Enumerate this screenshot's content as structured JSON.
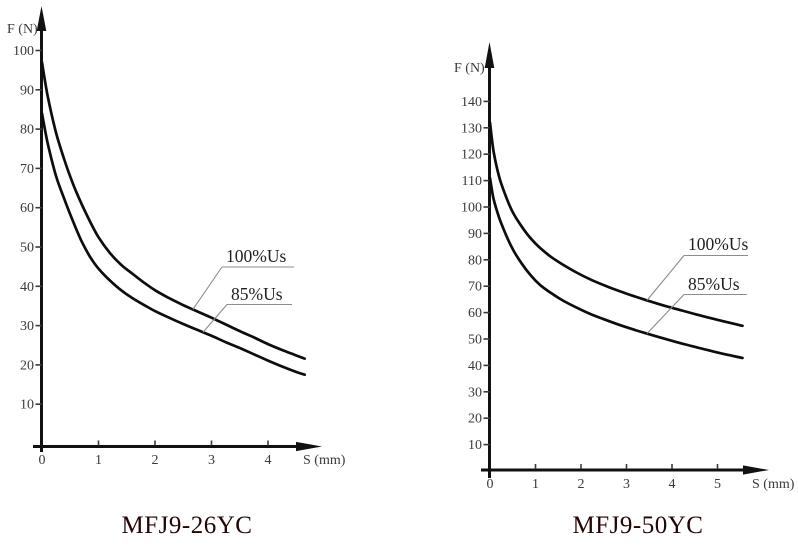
{
  "figure": {
    "background": "#ffffff"
  },
  "colors": {
    "curve": "#0d0d0d",
    "axis": "#111111",
    "tick_label": "#3a3a3a",
    "axis_title": "#3a3a3a",
    "annotation_text": "#1f1f1f",
    "leader_line": "#8c8c8c",
    "caption": "#220606"
  },
  "chart_data": [
    {
      "type": "line",
      "title": "MFJ9-26YC",
      "xlabel": "S (mm)",
      "ylabel": "F (N)",
      "x_ticks": [
        0,
        1,
        2,
        3,
        4
      ],
      "y_ticks": [
        10,
        20,
        30,
        40,
        50,
        60,
        70,
        80,
        90,
        100
      ],
      "xlim": [
        0,
        4.95
      ],
      "ylim": [
        0,
        111
      ],
      "grid": false,
      "legend_position": "inline-leader-labels",
      "series": [
        {
          "name": "100%Us",
          "points": [
            [
              0,
              97
            ],
            [
              0.1,
              88.5
            ],
            [
              0.25,
              79
            ],
            [
              0.4,
              72
            ],
            [
              0.55,
              66
            ],
            [
              0.7,
              61
            ],
            [
              0.85,
              56.5
            ],
            [
              1,
              52.5
            ],
            [
              1.2,
              48.5
            ],
            [
              1.4,
              45.5
            ],
            [
              1.6,
              43.2
            ],
            [
              1.8,
              41
            ],
            [
              2,
              39
            ],
            [
              2.25,
              37
            ],
            [
              2.5,
              35.2
            ],
            [
              2.75,
              33.6
            ],
            [
              3,
              32
            ],
            [
              3.25,
              30.3
            ],
            [
              3.5,
              28.6
            ],
            [
              3.75,
              27
            ],
            [
              4,
              25.3
            ],
            [
              4.25,
              23.8
            ],
            [
              4.5,
              22.4
            ],
            [
              4.65,
              21.6
            ]
          ]
        },
        {
          "name": "85%Us",
          "points": [
            [
              0,
              84
            ],
            [
              0.1,
              76.5
            ],
            [
              0.25,
              68
            ],
            [
              0.4,
              62
            ],
            [
              0.55,
              56.5
            ],
            [
              0.7,
              51.5
            ],
            [
              0.85,
              47.5
            ],
            [
              1,
              44.5
            ],
            [
              1.2,
              41.5
            ],
            [
              1.4,
              39
            ],
            [
              1.6,
              37
            ],
            [
              1.8,
              35.3
            ],
            [
              2,
              33.7
            ],
            [
              2.25,
              32
            ],
            [
              2.5,
              30.4
            ],
            [
              2.75,
              28.9
            ],
            [
              3,
              27.4
            ],
            [
              3.25,
              25.8
            ],
            [
              3.5,
              24.3
            ],
            [
              3.75,
              22.7
            ],
            [
              4,
              21.1
            ],
            [
              4.25,
              19.6
            ],
            [
              4.5,
              18.2
            ],
            [
              4.65,
              17.5
            ]
          ]
        }
      ]
    },
    {
      "type": "line",
      "title": "MFJ9-50YC",
      "xlabel": "S (mm)",
      "ylabel": "F (N)",
      "x_ticks": [
        0,
        1,
        2,
        3,
        4,
        5
      ],
      "y_ticks": [
        10,
        20,
        30,
        40,
        50,
        60,
        70,
        80,
        90,
        100,
        110,
        120,
        130,
        140
      ],
      "xlim": [
        0,
        5.9
      ],
      "ylim": [
        0,
        155
      ],
      "grid": false,
      "legend_position": "inline-leader-labels",
      "series": [
        {
          "name": "100%Us",
          "points": [
            [
              0,
              132
            ],
            [
              0.08,
              121
            ],
            [
              0.2,
              111.5
            ],
            [
              0.35,
              104
            ],
            [
              0.5,
              98
            ],
            [
              0.7,
              92.5
            ],
            [
              0.9,
              88
            ],
            [
              1.1,
              84.5
            ],
            [
              1.35,
              81
            ],
            [
              1.6,
              78.2
            ],
            [
              1.9,
              75.2
            ],
            [
              2.2,
              72.6
            ],
            [
              2.5,
              70.4
            ],
            [
              2.8,
              68.4
            ],
            [
              3.1,
              66.6
            ],
            [
              3.4,
              64.9
            ],
            [
              3.7,
              63.3
            ],
            [
              4,
              61.8
            ],
            [
              4.3,
              60.4
            ],
            [
              4.6,
              59
            ],
            [
              4.9,
              57.7
            ],
            [
              5.2,
              56.4
            ],
            [
              5.55,
              55
            ]
          ]
        },
        {
          "name": "85%Us",
          "points": [
            [
              0,
              111
            ],
            [
              0.08,
              103
            ],
            [
              0.2,
              96
            ],
            [
              0.35,
              89.5
            ],
            [
              0.5,
              84
            ],
            [
              0.7,
              78.5
            ],
            [
              0.9,
              74
            ],
            [
              1.1,
              70.5
            ],
            [
              1.35,
              67.3
            ],
            [
              1.6,
              64.6
            ],
            [
              1.9,
              61.9
            ],
            [
              2.2,
              59.5
            ],
            [
              2.5,
              57.5
            ],
            [
              2.8,
              55.6
            ],
            [
              3.1,
              53.9
            ],
            [
              3.4,
              52.3
            ],
            [
              3.7,
              50.8
            ],
            [
              4,
              49.3
            ],
            [
              4.3,
              47.9
            ],
            [
              4.6,
              46.6
            ],
            [
              4.9,
              45.3
            ],
            [
              5.2,
              44.1
            ],
            [
              5.55,
              42.8
            ]
          ]
        }
      ]
    }
  ]
}
